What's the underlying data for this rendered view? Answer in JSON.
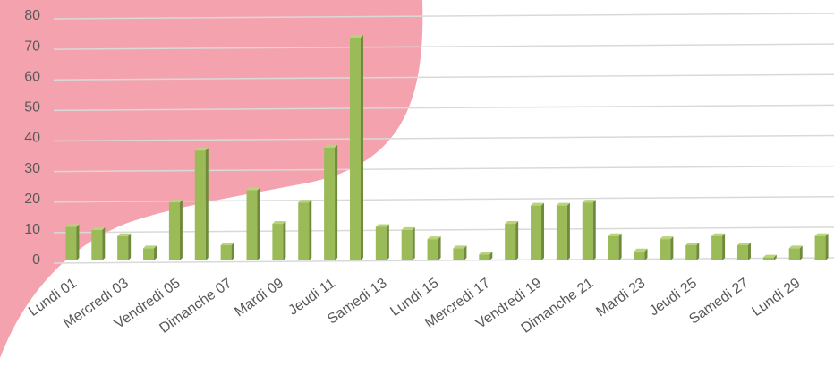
{
  "chart_data": {
    "type": "bar",
    "categories": [
      "Lundi 01",
      null,
      "Mercredi 03",
      null,
      "Vendredi 05",
      null,
      "Dimanche 07",
      null,
      "Mardi 09",
      null,
      "Jeudi 11",
      null,
      "Samedi 13",
      null,
      "Lundi 15",
      null,
      "Mercredi 17",
      null,
      "Vendredi 19",
      null,
      "Dimanche 21",
      null,
      "Mardi 23",
      null,
      "Jeudi 25",
      null,
      "Samedi 27",
      null,
      "Lundi 29",
      null
    ],
    "values": [
      11,
      10,
      8,
      4,
      19,
      36,
      5,
      23,
      12,
      19,
      37,
      73,
      11,
      10,
      7,
      4,
      2,
      12,
      18,
      18,
      19,
      8,
      3,
      7,
      5,
      8,
      5,
      1,
      4,
      8
    ],
    "color": "#9bbb59",
    "ylim": [
      0,
      80
    ],
    "yticks": [
      0,
      10,
      20,
      30,
      40,
      50,
      60,
      70,
      80
    ],
    "grid": true
  }
}
